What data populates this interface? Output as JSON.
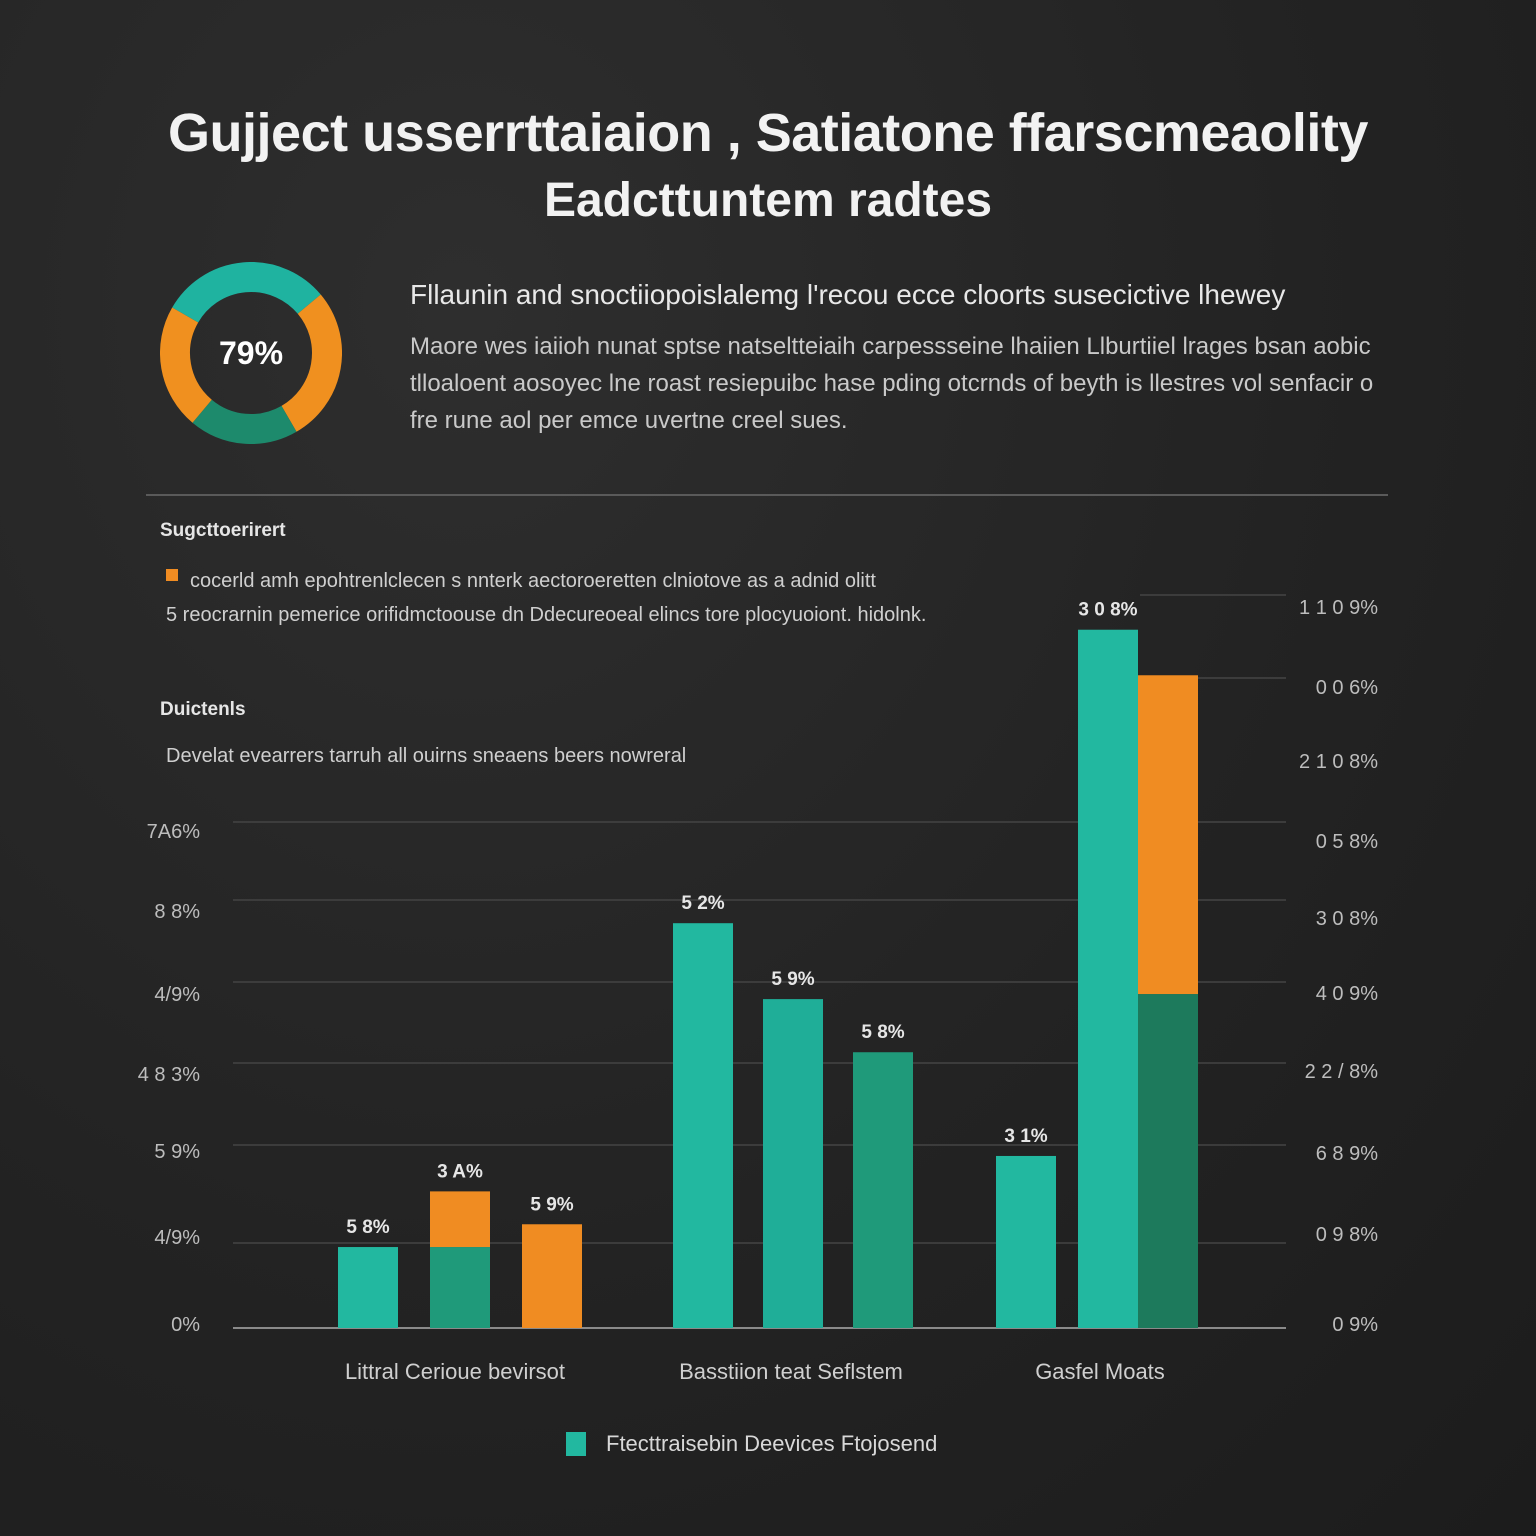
{
  "header": {
    "title_line1": "Gujject usserrttaiaion , Satiatone ffarscmeaolity",
    "title_line2": "Eadcttuntem radtes"
  },
  "donut": {
    "value": 79,
    "label": "79%",
    "colors": [
      "#1fb3a0",
      "#f0901f",
      "#1d8a6c",
      "#f0901f"
    ]
  },
  "intro": {
    "heading": "Fllaunin and snoctiiopoislalemg l'recou ecce cloorts susecictive lhewey",
    "body": "Maore wes iaiioh nunat sptse natseltteiaih carpessseine lhaiien Llburtiiel lrages bsan aobic tlloaloent aosoyec lne roast resiepuibc hase pding otcrnds of beyth is llestres vol senfacir o fre rune aol per emce uvertne creel sues."
  },
  "section1": {
    "title": "Sugcttoerirert",
    "line1": "cocerld amh epohtrenlclecen s nnterk aectoroeretten clniotove as a adnid olitt",
    "line2": "5 reocrarnin pemerice orifidmctoouse dn Ddecureoeal elincs tore plocyuoiont. hidolnk."
  },
  "section2": {
    "title": "Duictenls",
    "body": "Develat evearrers tarruh all ouirns sneaens beers nowreral"
  },
  "chart_data": {
    "type": "bar",
    "categories": [
      "Littral Cerioue bevirsot",
      "Basstiion teat Seflstem",
      "Gasfel Moats"
    ],
    "y_axis_left_ticks": [
      "0%",
      "4/9%",
      "5 9%",
      "4 8 3%",
      "4/9%",
      "8 8%",
      "7A6%"
    ],
    "y_axis_right_ticks": [
      "0 9%",
      "0 9 8%",
      "6 8 9%",
      "2 2 / 8%",
      "4 0 9%",
      "3 0 8%",
      "0 5 8%",
      "2 1 0 8%",
      "0 0 6%",
      "1 1 0 9%"
    ],
    "ylim": [
      0,
      100
    ],
    "bars": [
      {
        "category": 0,
        "value": 16,
        "label": "5 8%",
        "segments": [
          {
            "value": 16,
            "color": "#22b8a0"
          }
        ]
      },
      {
        "category": 0,
        "value": 27,
        "label": "3 A%",
        "segments": [
          {
            "value": 16,
            "color": "#1f9a7a"
          },
          {
            "value": 11,
            "color": "#f08c22"
          }
        ]
      },
      {
        "category": 0,
        "value": 20.5,
        "label": "5 9%",
        "segments": [
          {
            "value": 20.5,
            "color": "#f08c22"
          }
        ]
      },
      {
        "category": 1,
        "value": 80,
        "label": "5 2%",
        "segments": [
          {
            "value": 80,
            "color": "#22b8a0"
          }
        ]
      },
      {
        "category": 1,
        "value": 65,
        "label": "5 9%",
        "segments": [
          {
            "value": 65,
            "color": "#1fae98"
          }
        ]
      },
      {
        "category": 1,
        "value": 54.5,
        "label": "5 8%",
        "segments": [
          {
            "value": 54.5,
            "color": "#1f9a7a"
          }
        ]
      },
      {
        "category": 2,
        "value": 34,
        "label": "3 1%",
        "segments": [
          {
            "value": 34,
            "color": "#22b8a0"
          }
        ]
      },
      {
        "category": 2,
        "value": 138,
        "label": "3 0 8%",
        "segments": [
          {
            "value": 138,
            "color": "#22b8a0"
          }
        ]
      },
      {
        "category": 2,
        "value": 129,
        "label": "",
        "segments": [
          {
            "value": 66,
            "color": "#1d7a5c"
          },
          {
            "value": 63,
            "color": "#f08c22"
          }
        ]
      }
    ],
    "legend": [
      {
        "name": "Ftecttraisebin Deevices Ftojosend",
        "color": "#22b8a0"
      }
    ],
    "grid": true,
    "legend_position": "bottom-center"
  }
}
